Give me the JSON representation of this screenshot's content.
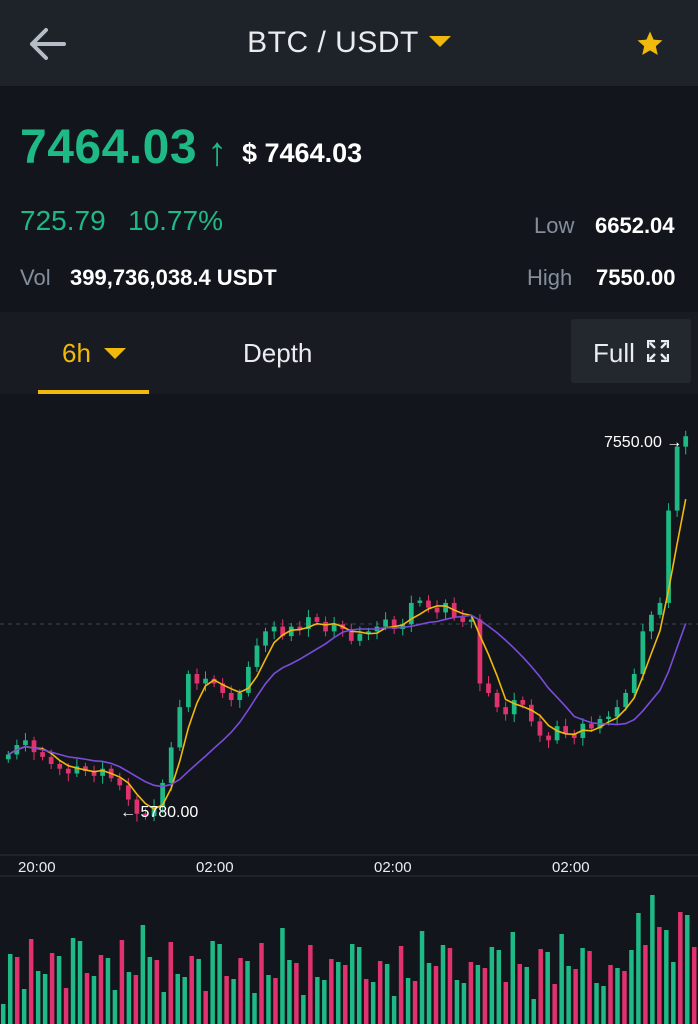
{
  "header": {
    "title": "BTC / USDT",
    "back_icon": "back-arrow-icon",
    "caret_icon": "caret-down-icon",
    "favorite_icon": "star-icon",
    "accent": "#f0b90b"
  },
  "ticker": {
    "last_price": "7464.03",
    "arrow": "↑",
    "usd_price": "$ 7464.03",
    "change_abs": "725.79",
    "change_pct": "10.77%",
    "vol_label": "Vol",
    "vol_value": "399,736,038.4 USDT",
    "low_label": "Low",
    "low_value": "6652.04",
    "high_label": "High",
    "high_value": "7550.00",
    "up_color": "#1fb985",
    "down_color": "#e0336e"
  },
  "tabs": {
    "interval": "6h",
    "depth": "Depth",
    "full": "Full",
    "full_icon": "fullscreen-icon"
  },
  "chart_data": {
    "type": "candlestick",
    "pair": "BTC / USDT",
    "interval": "6h",
    "y_range": [
      5700,
      7600
    ],
    "x_tick_labels": [
      "20:00",
      "02:00",
      "02:00",
      "02:00"
    ],
    "annotations": {
      "high_marker": "7550.00",
      "low_marker": "5780.00"
    },
    "close_prices": [
      6120,
      6160,
      6180,
      6130,
      6110,
      6080,
      6060,
      6040,
      6070,
      6050,
      6030,
      6060,
      6020,
      5990,
      5930,
      5870,
      5860,
      5900,
      6000,
      6150,
      6320,
      6460,
      6420,
      6440,
      6420,
      6380,
      6350,
      6380,
      6490,
      6580,
      6640,
      6660,
      6620,
      6660,
      6650,
      6700,
      6680,
      6640,
      6670,
      6650,
      6600,
      6630,
      6640,
      6660,
      6690,
      6650,
      6670,
      6760,
      6770,
      6740,
      6720,
      6760,
      6700,
      6680,
      6690,
      6420,
      6380,
      6320,
      6290,
      6350,
      6330,
      6260,
      6200,
      6180,
      6240,
      6210,
      6190,
      6250,
      6230,
      6270,
      6280,
      6320,
      6380,
      6460,
      6640,
      6710,
      6760,
      7150,
      7420,
      7464
    ],
    "ma_fast_color": "#f0b90b",
    "ma_slow_color": "#7b4cdb",
    "volume_series_count": 100,
    "up_color": "#1fb985",
    "down_color": "#e0336e"
  }
}
